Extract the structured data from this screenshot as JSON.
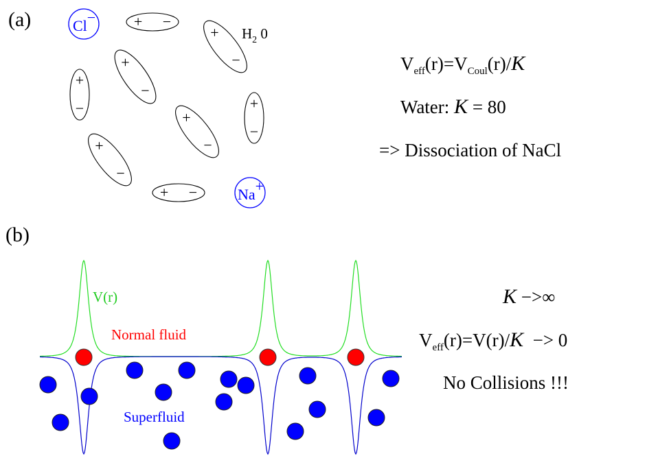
{
  "panel_a": {
    "label": "(a)",
    "cl_ion": {
      "symbol": "Cl",
      "charge": "−"
    },
    "na_ion": {
      "symbol": "Na",
      "charge": "+"
    },
    "dipole": {
      "positive": "+",
      "negative": "−"
    },
    "water_label": {
      "base": "H",
      "subscript": "2",
      "tail": " 0"
    },
    "equation_1": {
      "v": "V",
      "v_sub": "eff",
      "middle": "(r)=V",
      "coul_sub": "Coul",
      "end": "(r)/",
      "k": "K"
    },
    "equation_2": {
      "start": "Water: ",
      "k": "K",
      "end": " = 80"
    },
    "equation_3": "=> Dissociation of NaCl"
  },
  "panel_b": {
    "label": "(b)",
    "potential_label": "V(r)",
    "normal_label": "Normal fluid",
    "super_label": "Superfluid",
    "equation_1": {
      "k": "K",
      "end": " −>∞"
    },
    "equation_2": {
      "v": "V",
      "v_sub": "eff",
      "middle": "(r)=V(r)/",
      "k": "K",
      "end": "  −> 0"
    },
    "equation_3": "No Collisions !!!"
  }
}
